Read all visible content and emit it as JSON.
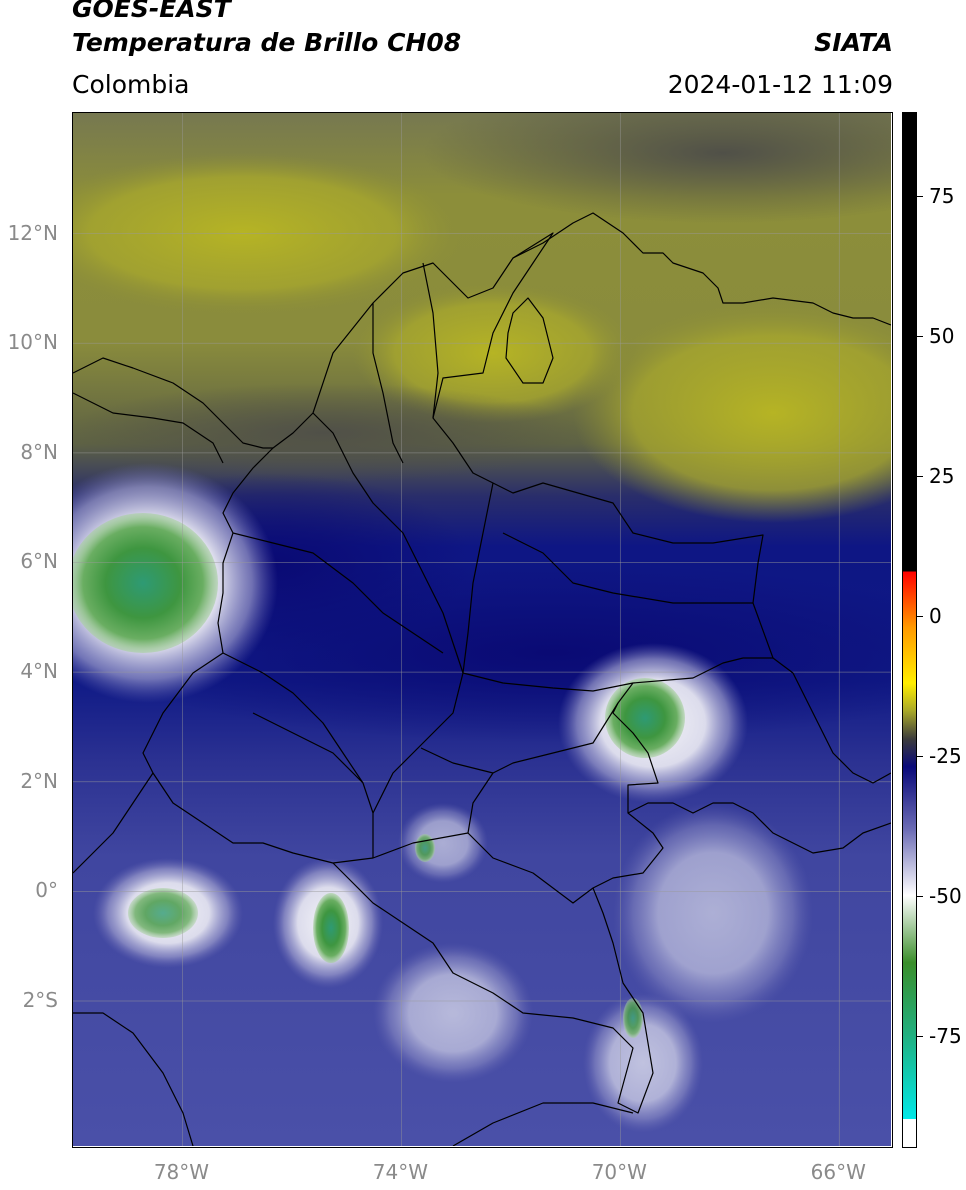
{
  "header": {
    "satellite": "GOES-EAST",
    "product": "Temperatura de Brillo CH08",
    "organization": "SIATA",
    "region": "Colombia",
    "timestamp": "2024-01-12 11:09"
  },
  "map": {
    "extent": {
      "lon_min": -80,
      "lon_max": -65,
      "lat_min": -4.7,
      "lat_max": 14.2
    },
    "gridlines": true,
    "lat_ticks": [
      "12°N",
      "10°N",
      "8°N",
      "6°N",
      "4°N",
      "2°N",
      "0°",
      "2°S"
    ],
    "lat_values": [
      12,
      10,
      8,
      6,
      4,
      2,
      0,
      -2
    ],
    "lon_ticks": [
      "78°W",
      "74°W",
      "70°W",
      "66°W"
    ],
    "lon_values": [
      -78,
      -74,
      -70,
      -66
    ]
  },
  "colorbar": {
    "range": [
      -95,
      90
    ],
    "ticks": [
      "75",
      "50",
      "25",
      "0",
      "-25",
      "-50",
      "-75"
    ],
    "tick_values": [
      75,
      50,
      25,
      0,
      -25,
      -50,
      -75
    ],
    "colors": {
      "black": "#000000",
      "red": "#ff0000",
      "orange": "#ff9900",
      "yellow": "#ffee00",
      "olive": "#a8a828",
      "gray": "#3c3c3c",
      "navy": "#0a0a7a",
      "periwinkle": "#6a6ab4",
      "white": "#ffffff",
      "green": "#3a8e2a",
      "teal": "#20b080",
      "cyan": "#00e8e8"
    }
  },
  "colors": {
    "dry_olive": "#8e9236",
    "dry_yellow": "#b0b02a",
    "dry_gray": "#58584a",
    "moist_navy": "#0e1a82",
    "moist_blue": "#4048a2",
    "cold_cloud_white": "#f2f2f6",
    "cold_cloud_green": "#4e9e44"
  }
}
